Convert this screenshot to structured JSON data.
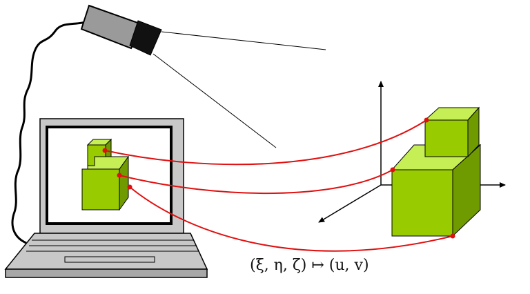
{
  "formula": "(ξ, η, ζ) ↦ (u, v)",
  "colors": {
    "cube_front": "#99cc00",
    "cube_top": "#c6ee55",
    "cube_side": "#6f9a00",
    "mapping_line": "#e01010",
    "camera_body": "#9a9a9a",
    "laptop_frame": "#c8c8c8"
  },
  "icons": [
    "camera-icon",
    "laptop-icon",
    "cube-icon",
    "axes-icon"
  ]
}
